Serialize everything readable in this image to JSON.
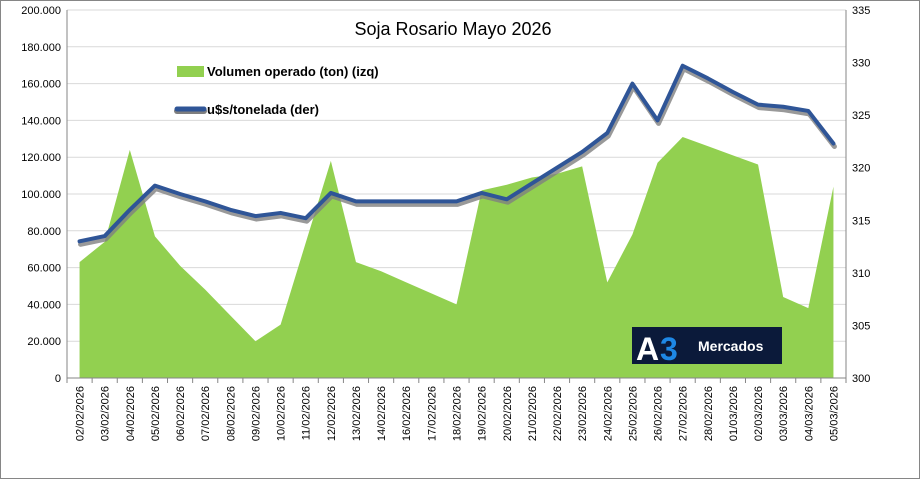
{
  "chart_data": {
    "type": "area",
    "title": "Soja Rosario Mayo 2026",
    "categories": [
      "02/02/2026",
      "03/02/2026",
      "04/02/2026",
      "05/02/2026",
      "06/02/2026",
      "07/02/2026",
      "08/02/2026",
      "09/02/2026",
      "10/02/2026",
      "11/02/2026",
      "12/02/2026",
      "13/02/2026",
      "14/02/2026",
      "16/02/2026",
      "17/02/2026",
      "18/02/2026",
      "19/02/2026",
      "20/02/2026",
      "21/02/2026",
      "22/02/2026",
      "23/02/2026",
      "24/02/2026",
      "25/02/2026",
      "26/02/2026",
      "27/02/2026",
      "28/02/2026",
      "01/03/2026",
      "02/03/2026",
      "03/03/2026",
      "04/03/2026",
      "05/03/2026"
    ],
    "series": [
      {
        "name": "Volumen operado (ton) (izq)",
        "type": "area",
        "axis": "left",
        "color": "#92d050",
        "values": [
          63000,
          74000,
          124000,
          77000,
          61000,
          48000,
          34000,
          20000,
          29000,
          null,
          118000,
          63000,
          58000,
          52000,
          46000,
          40000,
          102000,
          105000,
          109000,
          111000,
          115000,
          52000,
          78000,
          117000,
          131000,
          126000,
          121000,
          116000,
          44000,
          38000,
          104000
        ]
      },
      {
        "name": "u$s/tonelada (der)",
        "type": "line",
        "axis": "right",
        "color": "#2f5597",
        "values": [
          313.0,
          313.5,
          316.0,
          318.3,
          317.5,
          316.8,
          316.0,
          315.4,
          315.7,
          315.2,
          317.6,
          316.8,
          316.8,
          316.8,
          316.8,
          316.8,
          317.6,
          317.0,
          318.5,
          320.0,
          321.5,
          323.3,
          328.0,
          324.5,
          329.7,
          328.5,
          327.2,
          326.0,
          325.8,
          325.4,
          322.3
        ]
      }
    ],
    "y_left": {
      "min": 0,
      "max": 200000,
      "step": 20000
    },
    "y_right": {
      "min": 300,
      "max": 335,
      "step": 5
    },
    "y_left_ticks": [
      "0",
      "20.000",
      "40.000",
      "60.000",
      "80.000",
      "100.000",
      "120.000",
      "140.000",
      "160.000",
      "180.000",
      "200.000"
    ],
    "y_right_ticks": [
      "300",
      "305",
      "310",
      "315",
      "320",
      "325",
      "330",
      "335"
    ],
    "grid": "horizontal",
    "legend": "top-left"
  },
  "logo": {
    "mark": "A",
    "digit": "3",
    "text": "Mercados",
    "background": "#0b1a3a",
    "accent": "#1e88e5"
  }
}
